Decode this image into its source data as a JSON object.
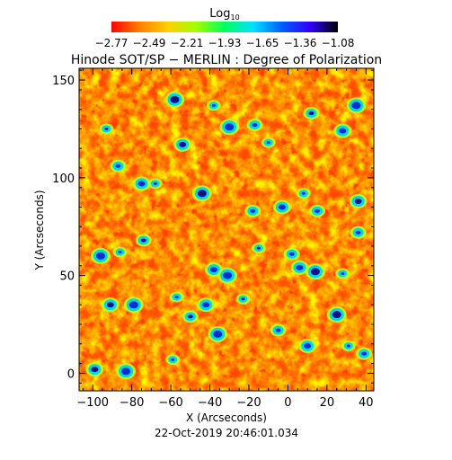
{
  "chart_data": {
    "type": "heatmap",
    "title": "Hinode SOT/SP − MERLIN : Degree of Polarization",
    "colorbar": {
      "label": "Log",
      "label_sub": "10",
      "ticks": [
        "−2.77",
        "−2.49",
        "−2.21",
        "−1.93",
        "−1.65",
        "−1.36",
        "−1.08"
      ],
      "range": [
        -2.77,
        -1.08
      ],
      "colors": [
        "#ff0000",
        "#ff8000",
        "#ffd000",
        "#a0ff00",
        "#00ff60",
        "#00e0ff",
        "#0060ff",
        "#3000ff",
        "#000000"
      ]
    },
    "xlabel": "X (Arcseconds)",
    "ylabel": "Y (Arcseconds)",
    "xlim": [
      -107,
      44
    ],
    "ylim": [
      -9,
      156
    ],
    "xticks": [
      -100,
      -80,
      -60,
      -40,
      -20,
      0,
      20,
      40
    ],
    "yticks": [
      0,
      50,
      100,
      150
    ],
    "field": {
      "background_level": -2.7,
      "strong_patches": [
        [
          -93,
          125
        ],
        [
          -87,
          106
        ],
        [
          -75,
          97
        ],
        [
          -58,
          140
        ],
        [
          -38,
          137
        ],
        [
          -17,
          127
        ],
        [
          -54,
          117
        ],
        [
          -30,
          126
        ],
        [
          -10,
          118
        ],
        [
          12,
          133
        ],
        [
          28,
          124
        ],
        [
          35,
          137
        ],
        [
          -68,
          97
        ],
        [
          -18,
          83
        ],
        [
          -3,
          85
        ],
        [
          -44,
          92
        ],
        [
          8,
          92
        ],
        [
          15,
          83
        ],
        [
          36,
          88
        ],
        [
          -96,
          60
        ],
        [
          -86,
          62
        ],
        [
          -74,
          68
        ],
        [
          -38,
          53
        ],
        [
          -31,
          50
        ],
        [
          -15,
          64
        ],
        [
          2,
          61
        ],
        [
          6,
          54
        ],
        [
          14,
          52
        ],
        [
          28,
          51
        ],
        [
          36,
          72
        ],
        [
          -91,
          35
        ],
        [
          -79,
          35
        ],
        [
          -57,
          39
        ],
        [
          -50,
          29
        ],
        [
          -42,
          35
        ],
        [
          -36,
          20
        ],
        [
          -23,
          38
        ],
        [
          -5,
          22
        ],
        [
          10,
          14
        ],
        [
          25,
          30
        ],
        [
          31,
          14
        ],
        [
          39,
          10
        ],
        [
          -99,
          2
        ],
        [
          -83,
          1
        ],
        [
          -59,
          7
        ]
      ]
    }
  },
  "footer": {
    "timestamp": "22-Oct-2019 20:46:01.034"
  }
}
